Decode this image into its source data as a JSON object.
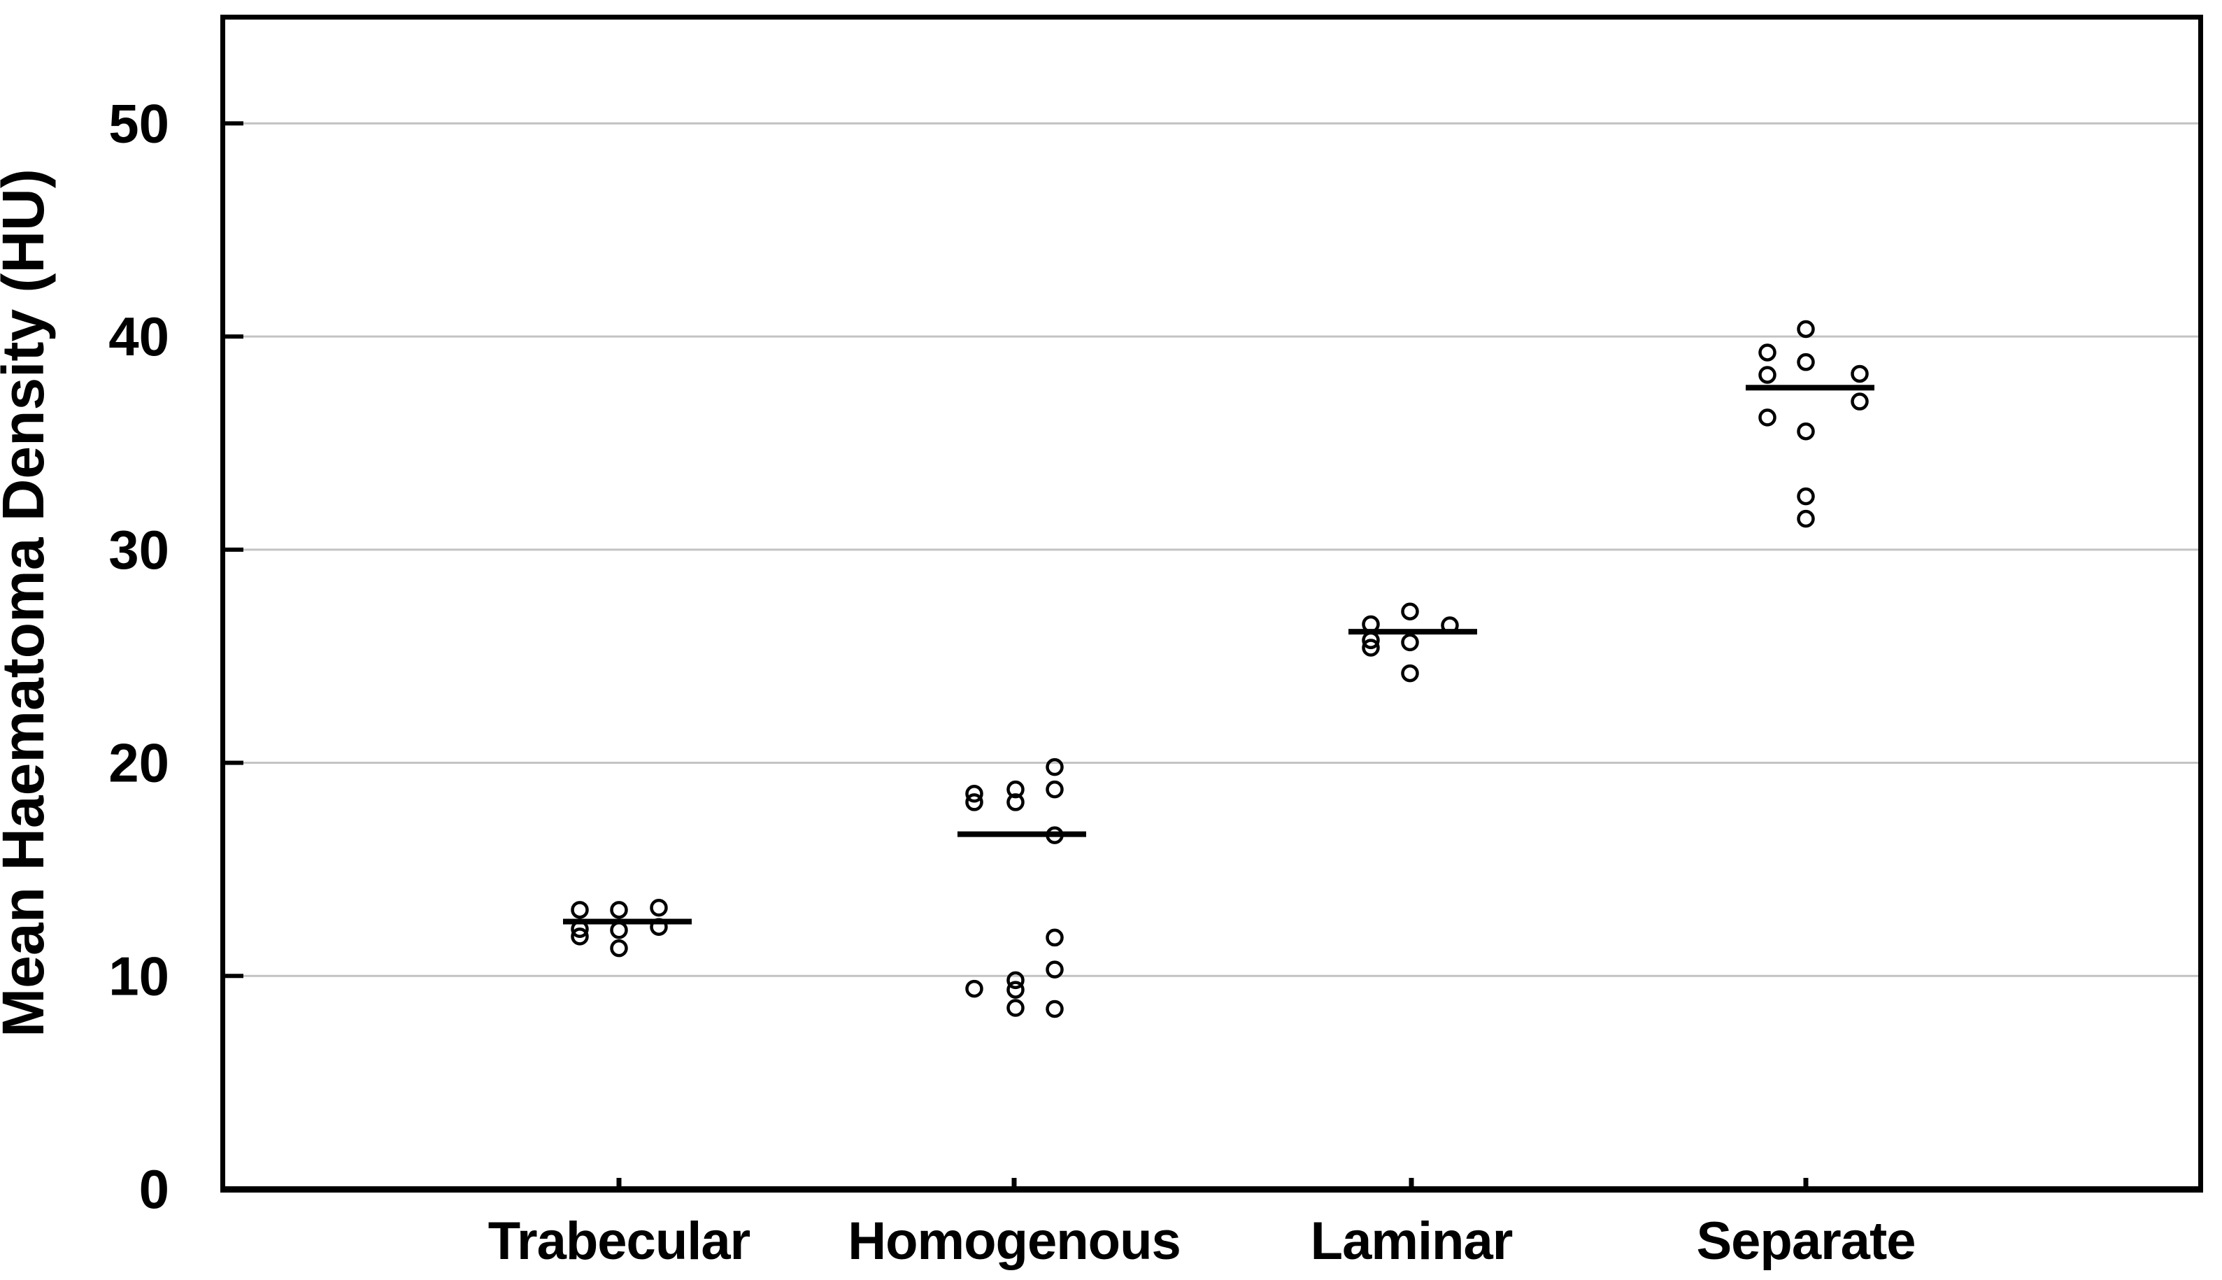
{
  "chart_data": {
    "type": "scatter",
    "subtype": "strip-dot-plot-with-mean-lines",
    "title": "",
    "xlabel": "",
    "ylabel": "Mean Haematoma Density (HU)",
    "ylim": [
      0,
      55
    ],
    "yticks": [
      0,
      10,
      20,
      30,
      40,
      50
    ],
    "grid": "horizontal-light-gray-at-10-20-30-40-50",
    "legend": "none",
    "marker": "open-circle",
    "colors": {
      "marker_stroke": "#000000",
      "mean_line": "#000000",
      "gridline": "#c3c3c3",
      "frame": "#000000",
      "background": "#ffffff"
    },
    "categories": [
      {
        "label": "Trabecular",
        "mean_line_value": 12.55,
        "mean_line_dx": 12,
        "points": [
          {
            "dx": -56,
            "v": 13.1
          },
          {
            "dx": -56,
            "v": 12.2
          },
          {
            "dx": -56,
            "v": 11.85
          },
          {
            "dx": 0,
            "v": 13.1
          },
          {
            "dx": 0,
            "v": 12.15
          },
          {
            "dx": 0,
            "v": 11.3
          },
          {
            "dx": 57,
            "v": 13.2
          },
          {
            "dx": 57,
            "v": 12.3
          }
        ]
      },
      {
        "label": "Homogenous",
        "mean_line_value": 16.65,
        "mean_line_dx": 11,
        "points": [
          {
            "dx": -57,
            "v": 18.55
          },
          {
            "dx": -57,
            "v": 18.15
          },
          {
            "dx": 2,
            "v": 18.75
          },
          {
            "dx": 2,
            "v": 18.15
          },
          {
            "dx": 58,
            "v": 19.8
          },
          {
            "dx": 58,
            "v": 18.75
          },
          {
            "dx": 58,
            "v": 16.6
          },
          {
            "dx": -57,
            "v": 9.4
          },
          {
            "dx": 2,
            "v": 9.8
          },
          {
            "dx": 2,
            "v": 9.35
          },
          {
            "dx": 2,
            "v": 8.5
          },
          {
            "dx": 58,
            "v": 11.8
          },
          {
            "dx": 58,
            "v": 10.3
          },
          {
            "dx": 58,
            "v": 8.45
          }
        ]
      },
      {
        "label": "Laminar",
        "mean_line_value": 26.15,
        "mean_line_dx": 2,
        "points": [
          {
            "dx": -58,
            "v": 26.5
          },
          {
            "dx": -58,
            "v": 25.75
          },
          {
            "dx": -58,
            "v": 25.4
          },
          {
            "dx": -2,
            "v": 27.1
          },
          {
            "dx": -2,
            "v": 25.65
          },
          {
            "dx": -2,
            "v": 24.2
          },
          {
            "dx": 55,
            "v": 26.45
          }
        ]
      },
      {
        "label": "Separate",
        "mean_line_value": 37.6,
        "mean_line_dx": 6,
        "points": [
          {
            "dx": 0,
            "v": 40.35
          },
          {
            "dx": -55,
            "v": 39.25
          },
          {
            "dx": 0,
            "v": 38.8
          },
          {
            "dx": -55,
            "v": 38.2
          },
          {
            "dx": 77,
            "v": 38.25
          },
          {
            "dx": 77,
            "v": 36.95
          },
          {
            "dx": -55,
            "v": 36.2
          },
          {
            "dx": 0,
            "v": 35.55
          },
          {
            "dx": 0,
            "v": 32.5
          },
          {
            "dx": 0,
            "v": 31.45
          }
        ]
      }
    ]
  }
}
